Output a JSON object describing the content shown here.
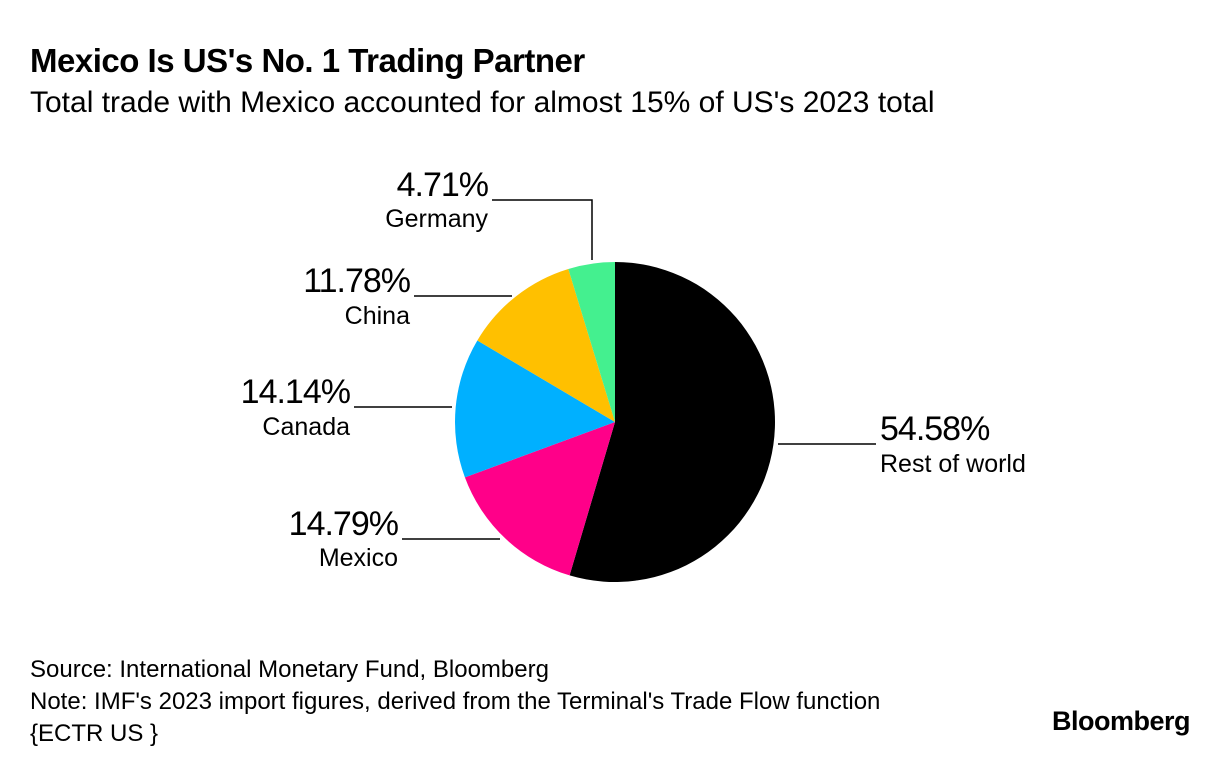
{
  "header": {
    "title": "Mexico Is US's No. 1 Trading Partner",
    "subtitle": "Total trade with Mexico accounted for almost 15% of US's 2023 total"
  },
  "chart_data": {
    "type": "pie",
    "title": "Mexico Is US's No. 1 Trading Partner",
    "subtitle": "Total trade with Mexico accounted for almost 15% of US's 2023 total",
    "start_angle_deg": 0,
    "direction": "clockwise",
    "slices": [
      {
        "name": "Rest of world",
        "value": 54.58,
        "label": "54.58%",
        "color": "#000000"
      },
      {
        "name": "Mexico",
        "value": 14.79,
        "label": "14.79%",
        "color": "#ff0089"
      },
      {
        "name": "Canada",
        "value": 14.14,
        "label": "14.14%",
        "color": "#00b0ff"
      },
      {
        "name": "China",
        "value": 11.78,
        "label": "11.78%",
        "color": "#ffc000"
      },
      {
        "name": "Germany",
        "value": 4.71,
        "label": "4.71%",
        "color": "#44f08f"
      }
    ]
  },
  "footer": {
    "source": "Source: International Monetary Fund, Bloomberg",
    "note": "Note: IMF's 2023 import figures, derived from the Terminal's Trade Flow function {ECTR US }",
    "brand": "Bloomberg"
  }
}
